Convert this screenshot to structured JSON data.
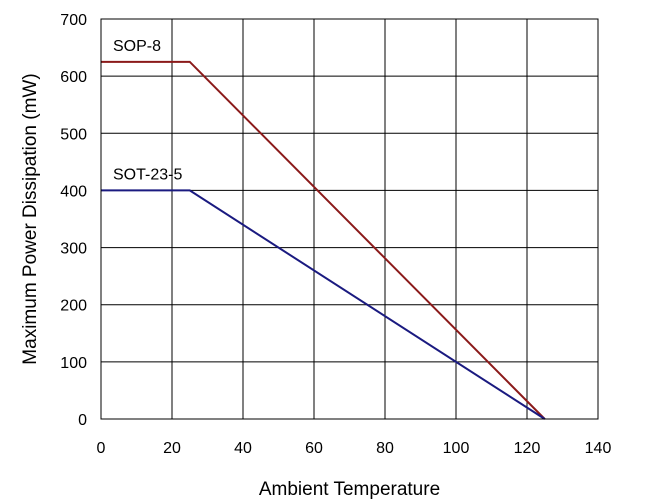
{
  "chart_data": {
    "type": "line",
    "title": "",
    "xlabel": "Ambient Temperature",
    "ylabel": "Maximum Power Dissipation (mW)",
    "xlim": [
      0,
      140
    ],
    "ylim": [
      0,
      700
    ],
    "x_ticks": [
      0,
      20,
      40,
      60,
      80,
      100,
      120,
      140
    ],
    "y_ticks": [
      0,
      100,
      200,
      300,
      400,
      500,
      600,
      700
    ],
    "x_tick_labels": [
      "0",
      "20",
      "40",
      "60",
      "80",
      "100",
      "120",
      "140"
    ],
    "y_tick_labels": [
      "0",
      "100",
      "200",
      "300",
      "400",
      "500",
      "600",
      "700"
    ],
    "grid": true,
    "legend": "inline labels",
    "series": [
      {
        "name": "SOP-8",
        "color": "#8b1a1a",
        "x": [
          0,
          25,
          125
        ],
        "y": [
          625,
          625,
          0
        ]
      },
      {
        "name": "SOT-23-5",
        "color": "#1a1a80",
        "x": [
          0,
          25,
          125
        ],
        "y": [
          400,
          400,
          0
        ]
      }
    ]
  }
}
